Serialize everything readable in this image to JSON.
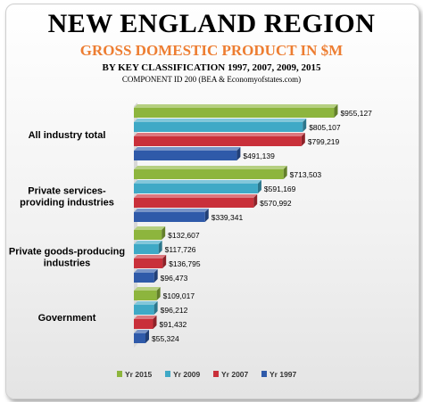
{
  "header": {
    "title": "NEW ENGLAND REGION",
    "subtitle": "GROSS DOMESTIC PRODUCT IN $M",
    "subtitle2": "BY KEY CLASSIFICATION 1997, 2007, 2009, 2015",
    "source": "COMPONENT ID 200 (BEA & Economyofstates.com)"
  },
  "colors": {
    "Yr 2015": "#8db53d",
    "Yr 2009": "#3fa9c6",
    "Yr 2007": "#c9303a",
    "Yr 1997": "#2f5aa9"
  },
  "chart_data": {
    "type": "bar",
    "orientation": "horizontal",
    "title": "NEW ENGLAND REGION",
    "subtitle": "GROSS DOMESTIC PRODUCT IN $M",
    "categories": [
      "All industry total",
      "Private services-providing industries",
      "Private goods-producing industries",
      "Government"
    ],
    "category_lines": [
      [
        "All industry total"
      ],
      [
        "Private services-",
        "providing industries"
      ],
      [
        "Private goods-producing",
        "industries"
      ],
      [
        "Government"
      ]
    ],
    "series": [
      {
        "name": "Yr 2015",
        "values": [
          955127,
          713503,
          132607,
          109017
        ],
        "labels": [
          "$955,127",
          "$713,503",
          "$132,607",
          "$109,017"
        ]
      },
      {
        "name": "Yr 2009",
        "values": [
          805107,
          591169,
          117726,
          96212
        ],
        "labels": [
          "$805,107",
          "$591,169",
          "$117,726",
          "$96,212"
        ]
      },
      {
        "name": "Yr 2007",
        "values": [
          799219,
          570992,
          136795,
          91432
        ],
        "labels": [
          "$799,219",
          "$570,992",
          "$136,795",
          "$91,432"
        ]
      },
      {
        "name": "Yr 1997",
        "values": [
          491139,
          339341,
          96473,
          55324
        ],
        "labels": [
          "$491,139",
          "$339,341",
          "$96,473",
          "$55,324"
        ]
      }
    ],
    "xlim": [
      0,
      1000000
    ],
    "grid": false,
    "legend_position": "bottom"
  }
}
